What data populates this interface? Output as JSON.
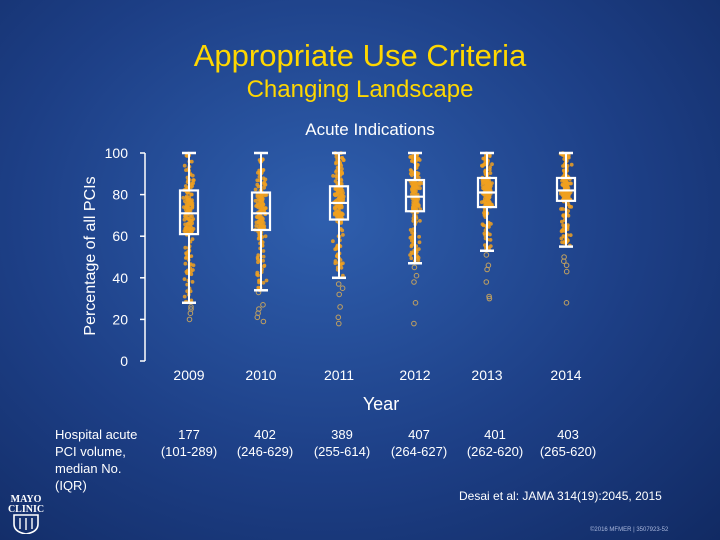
{
  "header": {
    "title": "Appropriate Use Criteria",
    "subtitle": "Changing Landscape"
  },
  "chart_data": {
    "type": "boxplot",
    "title": "Acute Indications",
    "xlabel": "Year",
    "ylabel": "Percentage of all PCIs",
    "ylim": [
      0,
      100
    ],
    "yticks": [
      0,
      20,
      40,
      60,
      80,
      100
    ],
    "grid": false,
    "categories": [
      "2009",
      "2010",
      "2011",
      "2012",
      "2013",
      "2014"
    ],
    "boxes": [
      {
        "year": "2009",
        "min": 28,
        "q1": 61,
        "median": 71,
        "q3": 82,
        "max": 100,
        "outliers": [
          23,
          26,
          20,
          25
        ]
      },
      {
        "year": "2010",
        "min": 34,
        "q1": 63,
        "median": 71,
        "q3": 81,
        "max": 100,
        "outliers": [
          27,
          25,
          21,
          19,
          23,
          33
        ]
      },
      {
        "year": "2011",
        "min": 40,
        "q1": 68,
        "median": 76,
        "q3": 84,
        "max": 100,
        "outliers": [
          32,
          26,
          21,
          18,
          35,
          37
        ]
      },
      {
        "year": "2012",
        "min": 47,
        "q1": 72,
        "median": 79,
        "q3": 87,
        "max": 100,
        "outliers": [
          41,
          38,
          28,
          18,
          45
        ]
      },
      {
        "year": "2013",
        "min": 53,
        "q1": 74,
        "median": 81,
        "q3": 88,
        "max": 100,
        "outliers": [
          38,
          31,
          30,
          46,
          44,
          51
        ]
      },
      {
        "year": "2014",
        "min": 55,
        "q1": 77,
        "median": 82,
        "q3": 88,
        "max": 100,
        "outliers": [
          43,
          28,
          46,
          50,
          48
        ]
      }
    ],
    "point_color": "#f0a020",
    "box_color": "#ffffff"
  },
  "volume_table": {
    "header": "Hospital acute PCI volume, median No. (IQR)",
    "columns": [
      {
        "median": "177",
        "iqr": "(101-289)"
      },
      {
        "median": "402",
        "iqr": "(246-629)"
      },
      {
        "median": "389",
        "iqr": "(255-614)"
      },
      {
        "median": "407",
        "iqr": "(264-627)"
      },
      {
        "median": "401",
        "iqr": "(262-620)"
      },
      {
        "median": "403",
        "iqr": "(265-620)"
      }
    ]
  },
  "footer": {
    "citation": "Desai et al: JAMA 314(19):2045, 2015",
    "copyright": "©2016 MFMER | 3507923-52",
    "logo_line1": "MAYO",
    "logo_line2": "CLINIC",
    "logo_icon": "mayo-shield-icon"
  }
}
